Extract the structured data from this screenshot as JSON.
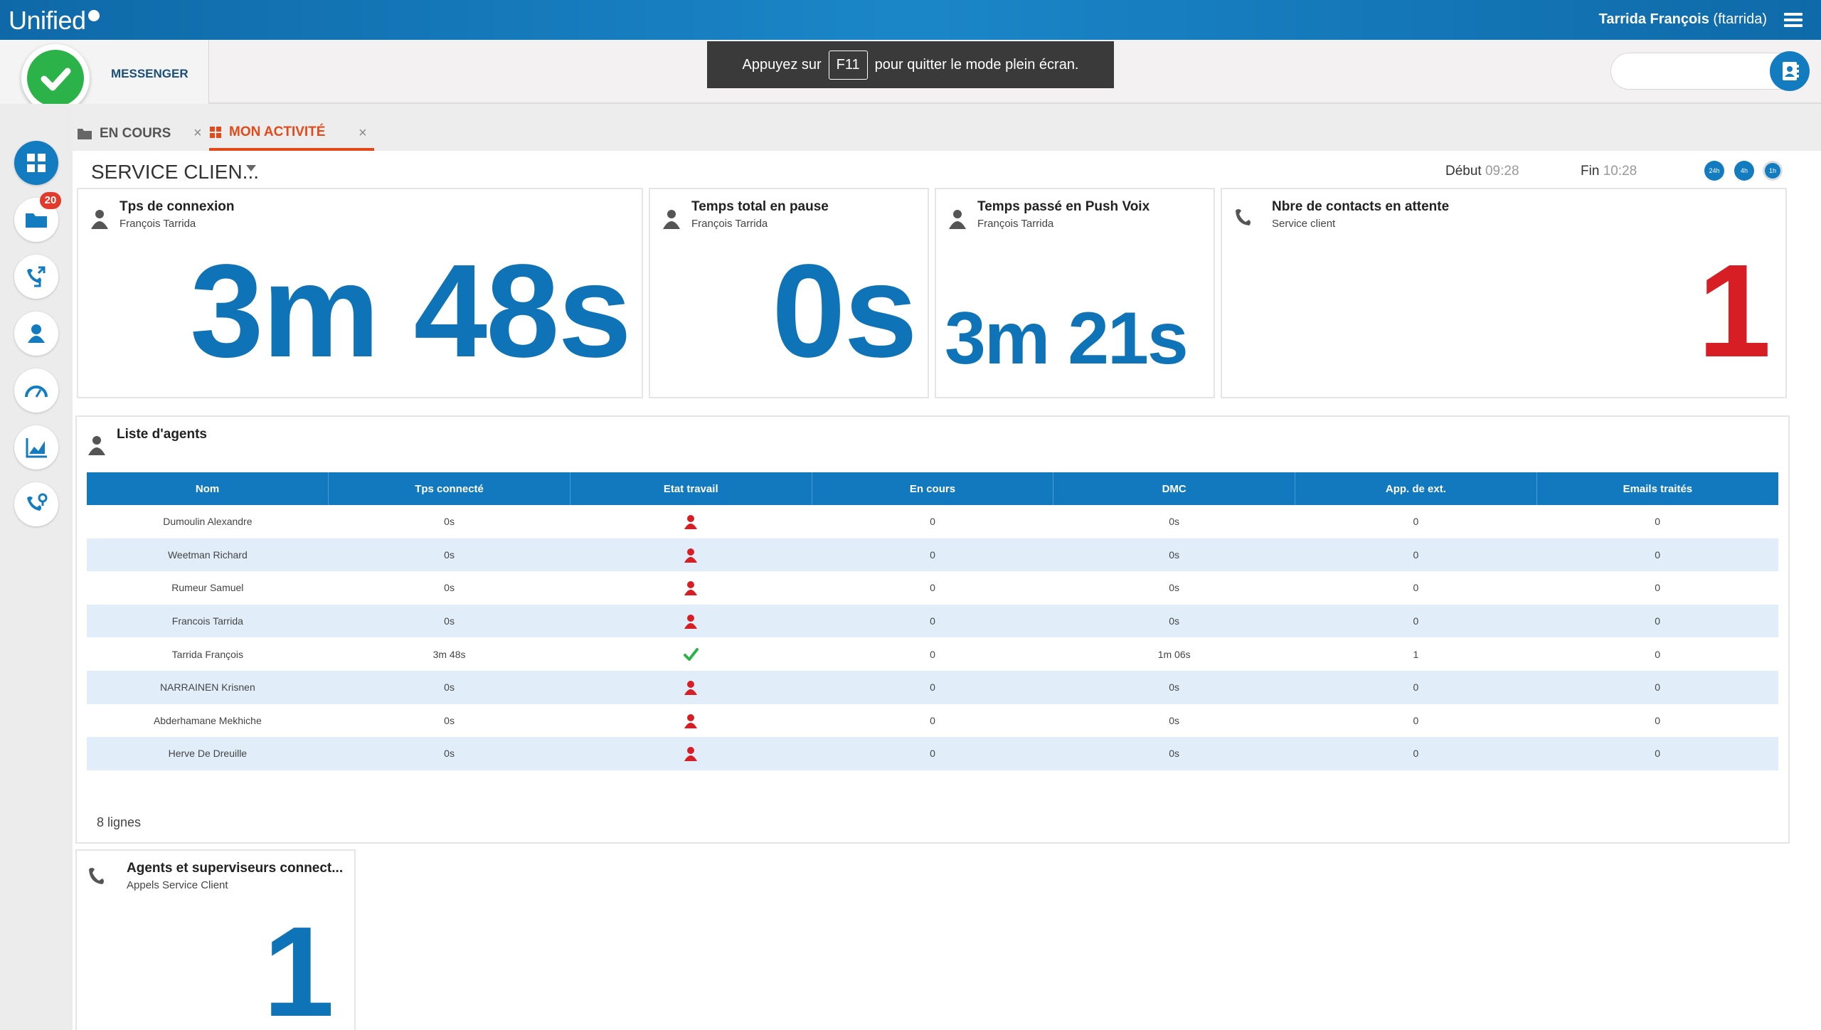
{
  "topbar": {
    "logo": "Unified",
    "user_name": "Tarrida François",
    "user_login": "(ftarrida)"
  },
  "header": {
    "messenger_label": "MESSENGER",
    "fullscreen_notice": {
      "before": "Appuyez sur",
      "key": "F11",
      "after": "pour quitter le mode plein écran."
    },
    "search_placeholder": ""
  },
  "sidebar": {
    "items": [
      {
        "icon": "dashboard-icon",
        "active": true
      },
      {
        "icon": "folder-icon",
        "badge": "20"
      },
      {
        "icon": "transfer-calls-icon"
      },
      {
        "icon": "user-icon"
      },
      {
        "icon": "speedometer-icon"
      },
      {
        "icon": "chart-icon"
      },
      {
        "icon": "phone-network-icon"
      }
    ]
  },
  "tabs": [
    {
      "label": "EN COURS",
      "active": false
    },
    {
      "label": "MON ACTIVITÉ",
      "active": true
    }
  ],
  "panel": {
    "service_title": "SERVICE CLIEN...",
    "debut_label": "Début",
    "debut_value": "09:28",
    "fin_label": "Fin",
    "fin_value": "10:28",
    "ranges": [
      "24h",
      "4h",
      "1h"
    ],
    "selected_range": "1h"
  },
  "cards": {
    "connexion": {
      "title": "Tps de connexion",
      "sub": "François Tarrida",
      "value": "3m 48s"
    },
    "pause": {
      "title": "Temps total en pause",
      "sub": "François Tarrida",
      "value": "0s"
    },
    "push": {
      "title": "Temps passé en Push Voix",
      "sub": "François Tarrida",
      "value": "3m 21s"
    },
    "attente": {
      "title": "Nbre de contacts en attente",
      "sub": "Service client",
      "value": "1"
    },
    "agents_connectes": {
      "title": "Agents et superviseurs connect...",
      "sub": "Appels Service Client",
      "value": "1"
    }
  },
  "agents": {
    "title": "Liste d'agents",
    "columns": [
      "Nom",
      "Tps connecté",
      "Etat travail",
      "En cours",
      "DMC",
      "App. de ext.",
      "Emails traités"
    ],
    "rows": [
      {
        "nom": "Dumoulin Alexandre",
        "tps": "0s",
        "etat": "unavailable",
        "en_cours": "0",
        "dmc": "0s",
        "app": "0",
        "emails": "0"
      },
      {
        "nom": "Weetman Richard",
        "tps": "0s",
        "etat": "unavailable",
        "en_cours": "0",
        "dmc": "0s",
        "app": "0",
        "emails": "0"
      },
      {
        "nom": "Rumeur Samuel",
        "tps": "0s",
        "etat": "unavailable",
        "en_cours": "0",
        "dmc": "0s",
        "app": "0",
        "emails": "0"
      },
      {
        "nom": "Francois Tarrida",
        "tps": "0s",
        "etat": "unavailable",
        "en_cours": "0",
        "dmc": "0s",
        "app": "0",
        "emails": "0"
      },
      {
        "nom": "Tarrida François",
        "tps": "3m 48s",
        "etat": "available",
        "en_cours": "0",
        "dmc": "1m 06s",
        "app": "1",
        "emails": "0"
      },
      {
        "nom": "NARRAINEN Krisnen",
        "tps": "0s",
        "etat": "unavailable",
        "en_cours": "0",
        "dmc": "0s",
        "app": "0",
        "emails": "0"
      },
      {
        "nom": "Abderhamane Mekhiche",
        "tps": "0s",
        "etat": "unavailable",
        "en_cours": "0",
        "dmc": "0s",
        "app": "0",
        "emails": "0"
      },
      {
        "nom": "Herve De Dreuille",
        "tps": "0s",
        "etat": "unavailable",
        "en_cours": "0",
        "dmc": "0s",
        "app": "0",
        "emails": "0"
      }
    ],
    "lines_count": "8 lignes"
  },
  "colors": {
    "primary": "#137bc0",
    "accent_tab": "#e34a1b",
    "alert": "#d71e25",
    "ok": "#2bb34a"
  }
}
